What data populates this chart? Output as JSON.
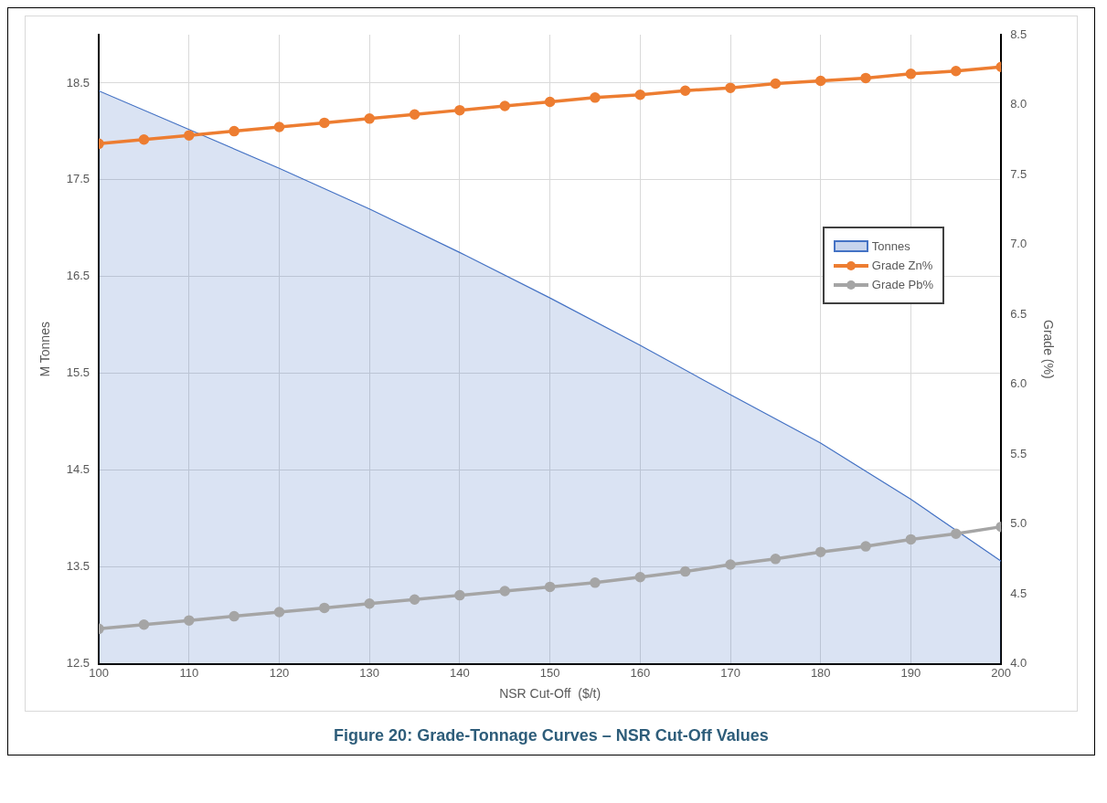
{
  "chart_data": {
    "type": "line",
    "title": "Figure 20: Grade-Tonnage Curves – NSR Cut-Off Values",
    "xlabel": "NSR Cut-Off  ($/t)",
    "ylabel": "M Tonnes",
    "y2label": "Grade (%)",
    "x": [
      100,
      105,
      110,
      115,
      120,
      125,
      130,
      135,
      140,
      145,
      150,
      155,
      160,
      165,
      170,
      175,
      180,
      185,
      190,
      195,
      200
    ],
    "series": [
      {
        "name": "Tonnes",
        "type": "area",
        "color": "#4472c4",
        "marker": "none",
        "x": [
          100,
          110,
          120,
          130,
          140,
          150,
          160,
          170,
          180,
          190,
          200
        ],
        "values": [
          18.42,
          18.02,
          17.62,
          17.2,
          16.75,
          16.28,
          15.79,
          15.28,
          14.78,
          14.2,
          13.56
        ]
      },
      {
        "name": "Grade Zn%",
        "axis": "y2",
        "color": "#ed7d31",
        "marker": "circle",
        "values": [
          7.72,
          7.75,
          7.78,
          7.81,
          7.84,
          7.87,
          7.9,
          7.93,
          7.96,
          7.99,
          8.02,
          8.05,
          8.07,
          8.1,
          8.12,
          8.15,
          8.17,
          8.19,
          8.22,
          8.24,
          8.27
        ]
      },
      {
        "name": "Grade Pb%",
        "axis": "y2",
        "color": "#a5a5a5",
        "marker": "circle",
        "values": [
          4.25,
          4.28,
          4.31,
          4.34,
          4.37,
          4.4,
          4.43,
          4.46,
          4.49,
          4.52,
          4.55,
          4.58,
          4.62,
          4.66,
          4.71,
          4.75,
          4.8,
          4.84,
          4.89,
          4.93,
          4.98
        ]
      }
    ],
    "xlim": [
      100,
      200
    ],
    "xticks": [
      100,
      110,
      120,
      130,
      140,
      150,
      160,
      170,
      180,
      190,
      200
    ],
    "ylim": [
      12.5,
      19
    ],
    "yticks": [
      12.5,
      13.5,
      14.5,
      15.5,
      16.5,
      17.5,
      18.5
    ],
    "y2lim": [
      4,
      8.5
    ],
    "y2ticks": [
      {
        "value": 4,
        "label": "4.0"
      },
      4.5,
      {
        "value": 5,
        "label": "5.0"
      },
      5.5,
      {
        "value": 6,
        "label": "6.0"
      },
      6.5,
      {
        "value": 7,
        "label": "7.0"
      },
      7.5,
      {
        "value": 8,
        "label": "8.0"
      },
      8.5
    ],
    "grid": true,
    "legend": "right",
    "line_style": "solid"
  }
}
